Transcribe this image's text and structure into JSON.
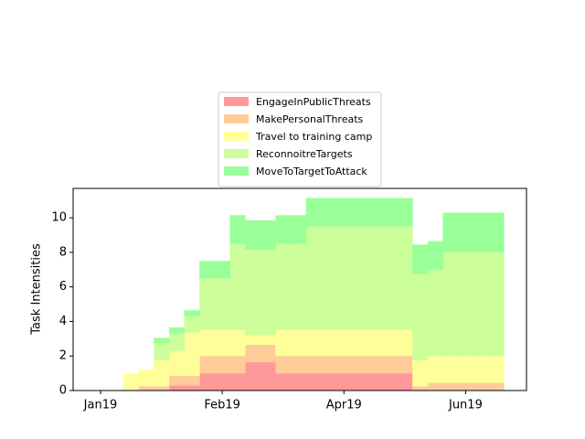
{
  "chart_data": {
    "type": "stacked-step-area",
    "y_label": "Task Intensities",
    "x": [
      1.5,
      2.5,
      3.5,
      4.5,
      5.5,
      6.5,
      7.5,
      8.5,
      9.5,
      10.5,
      11.5,
      12.5,
      13.5,
      14.5,
      15.5,
      16.5,
      17.5,
      18.5,
      19.5,
      20.5,
      21.5,
      22.5,
      23.5,
      24.5,
      25.5
    ],
    "xlim": [
      -1.8,
      28
    ],
    "xticks": [
      {
        "value": 0,
        "label": "Jan19"
      },
      {
        "value": 8,
        "label": "Feb19"
      },
      {
        "value": 16,
        "label": "Apr19"
      },
      {
        "value": 24,
        "label": "Jun19"
      }
    ],
    "ylim": [
      0,
      11.7
    ],
    "yticks": [
      0,
      2,
      4,
      6,
      8,
      10
    ],
    "grid": false,
    "legend_position": "top",
    "series": [
      {
        "name": "EngageInPublicThreats",
        "color": "#ff9999",
        "values": [
          0,
          0,
          0,
          0.3,
          0.3,
          1,
          1,
          1,
          1.65,
          1.65,
          1,
          1,
          1,
          1,
          1,
          1,
          1,
          1,
          1,
          0,
          0,
          0,
          0,
          0,
          0
        ]
      },
      {
        "name": "MakePersonalThreats",
        "color": "#ffcc99",
        "values": [
          0,
          0.25,
          0.25,
          0.55,
          0.55,
          1,
          1,
          1,
          1,
          1,
          1,
          1,
          1,
          1,
          1,
          1,
          1,
          1,
          1,
          0.25,
          0.45,
          0.45,
          0.45,
          0.45,
          0.45
        ]
      },
      {
        "name": "Travel to training camp",
        "color": "#ffff99",
        "values": [
          1,
          0.95,
          1.5,
          1.45,
          2.5,
          1.5,
          1.5,
          1.5,
          0.55,
          0.55,
          1.5,
          1.5,
          1.5,
          1.5,
          1.5,
          1.5,
          1.5,
          1.5,
          1.5,
          1.5,
          1.55,
          1.55,
          1.55,
          1.55,
          1.55
        ]
      },
      {
        "name": "ReconnoitreTargets",
        "color": "#ccff99",
        "values": [
          0,
          0,
          1,
          1,
          0.95,
          3,
          3,
          5,
          4.95,
          4.95,
          5,
          5,
          6,
          6,
          6,
          6,
          6,
          6,
          6,
          5,
          5,
          6,
          6,
          6,
          6
        ]
      },
      {
        "name": "MoveToTargetToAttack",
        "color": "#99ff99",
        "values": [
          0,
          0,
          0.3,
          0.35,
          0.35,
          1,
          1,
          1.65,
          1.7,
          1.7,
          1.65,
          1.65,
          1.65,
          1.65,
          1.65,
          1.65,
          1.65,
          1.65,
          1.65,
          1.7,
          1.65,
          2.3,
          2.3,
          2.3,
          2.3
        ]
      }
    ]
  }
}
